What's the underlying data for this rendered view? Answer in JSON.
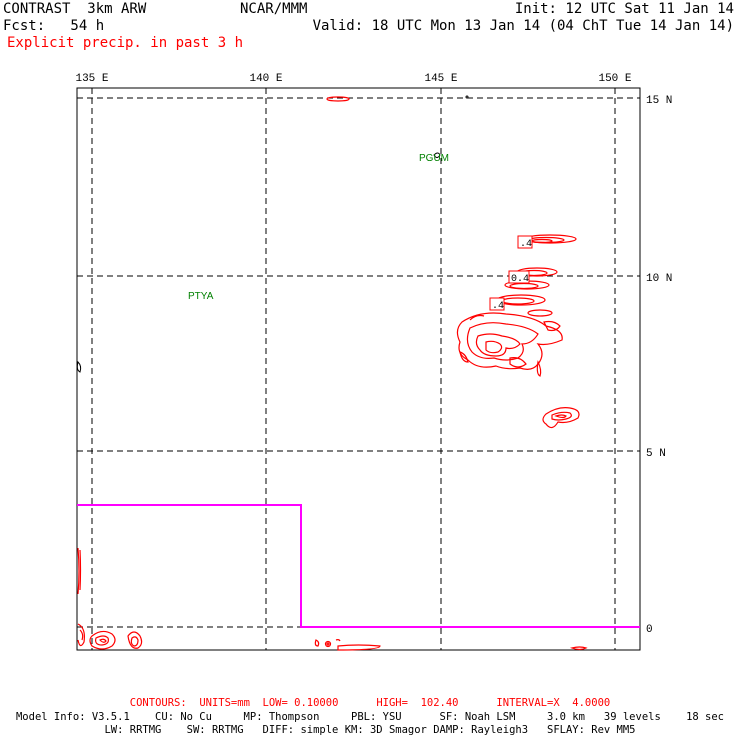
{
  "header": {
    "model": "CONTRAST  3km ARW",
    "org": "NCAR/MMM",
    "init": "Init: 12 UTC Sat 11 Jan 14",
    "fcst": "Fcst:   54 h",
    "valid": "Valid: 18 UTC Mon 13 Jan 14 (04 ChT Tue 14 Jan 14)",
    "field": "Explicit precip. in past 3 h"
  },
  "map": {
    "lon_labels": [
      "135 E",
      "140 E",
      "145 E",
      "150 E"
    ],
    "lat_labels": [
      "15 N",
      "10 N",
      "5 N",
      "0"
    ],
    "stations": [
      "PGUM",
      "PTYA"
    ],
    "contour_labels": [
      ".4",
      "0.4",
      ".4"
    ],
    "colors": {
      "contour": "#ff0000",
      "station": "#008000",
      "boundary": "#ff00ff",
      "grid": "#000000"
    }
  },
  "footer": {
    "contours": "CONTOURS:  UNITS=mm  LOW= 0.10000      HIGH=  102.40      INTERVAL=X  4.0000",
    "model_info_1": "Model Info: V3.5.1    CU: No Cu     MP: Thompson     PBL: YSU      SF: Noah LSM     3.0 km   39 levels    18 sec",
    "model_info_2": "LW: RRTMG    SW: RRTMG   DIFF: simple KM: 3D Smagor DAMP: Rayleigh3   SFLAY: Rev MM5"
  }
}
